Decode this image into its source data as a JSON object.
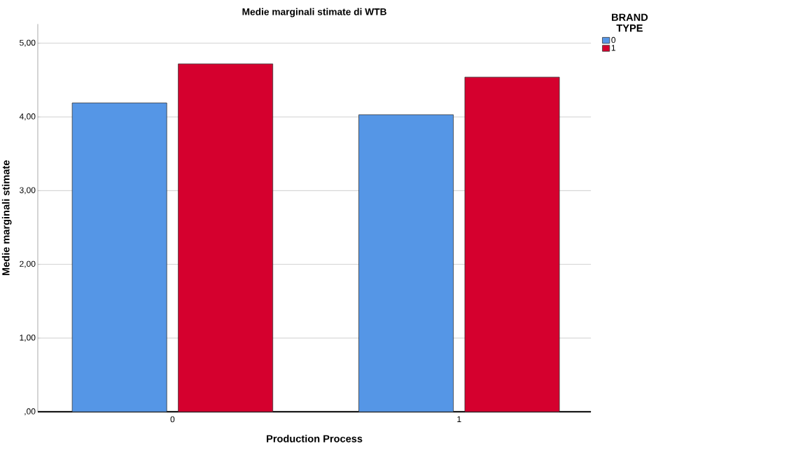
{
  "chart_data": {
    "type": "bar",
    "title": "Medie marginali stimate di WTB",
    "xlabel": "Production Process",
    "ylabel": "Medie marginali stimate",
    "legend_title": "BRAND TYPE",
    "categories": [
      "0",
      "1"
    ],
    "series": [
      {
        "name": "0",
        "color": "#5596e6",
        "values": [
          4.19,
          4.03
        ]
      },
      {
        "name": "1",
        "color": "#d5002e",
        "values": [
          4.72,
          4.54
        ]
      }
    ],
    "ylim": [
      0,
      5.26
    ],
    "yticks": [
      {
        "value": 0,
        "label": ",00"
      },
      {
        "value": 1,
        "label": "1,00"
      },
      {
        "value": 2,
        "label": "2,00"
      },
      {
        "value": 3,
        "label": "3,00"
      },
      {
        "value": 4,
        "label": "4,00"
      },
      {
        "value": 5,
        "label": "5,00"
      }
    ],
    "grid": "y",
    "legend": "top right"
  }
}
